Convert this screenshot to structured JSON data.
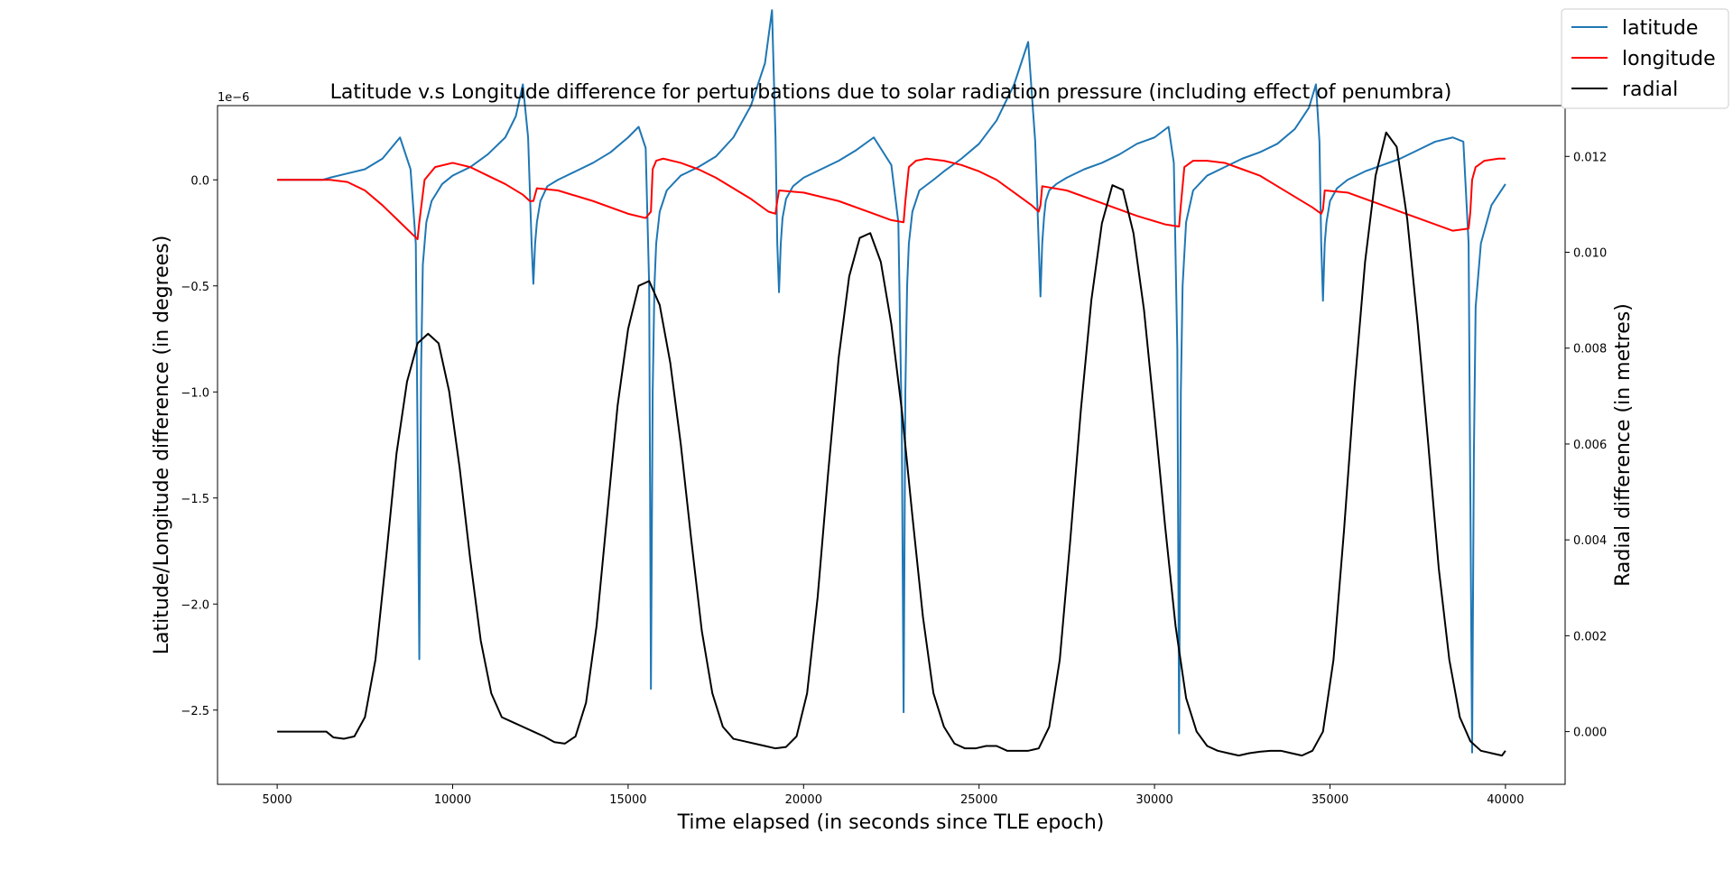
{
  "chart_data": {
    "type": "line",
    "title": "Latitude v.s Longitude difference for perturbations due to solar radiation pressure (including effect of penumbra)",
    "xlabel": "Time elapsed (in seconds since TLE epoch)",
    "ylabel_left": "Latitude/Longitude difference (in degrees)",
    "ylabel_right": "Radial difference (in metres)",
    "left_axis_multiplier": "1e−6",
    "xlim": [
      3300,
      41700
    ],
    "ylim_left": [
      -2.85,
      0.35
    ],
    "ylim_right": [
      -0.0011,
      0.01306
    ],
    "x_ticks": [
      5000,
      10000,
      15000,
      20000,
      25000,
      30000,
      35000,
      40000
    ],
    "x_tick_labels": [
      "5000",
      "10000",
      "15000",
      "20000",
      "25000",
      "30000",
      "35000",
      "40000"
    ],
    "y_left_ticks": [
      0.0,
      -0.5,
      -1.0,
      -1.5,
      -2.0,
      -2.5
    ],
    "y_left_tick_labels": [
      "0.0",
      "−0.5",
      "−1.0",
      "−1.5",
      "−2.0",
      "−2.5"
    ],
    "y_right_ticks": [
      0.0,
      0.002,
      0.004,
      0.006,
      0.008,
      0.01,
      0.012
    ],
    "y_right_tick_labels": [
      "0.000",
      "0.002",
      "0.004",
      "0.006",
      "0.008",
      "0.010",
      "0.012"
    ],
    "grid": false,
    "legend_position": "top-right",
    "series": [
      {
        "name": "latitude",
        "axis": "left",
        "color": "#1f77b4",
        "x": [
          5000,
          6300,
          6500,
          7000,
          7500,
          8000,
          8500,
          8800,
          8950,
          9000,
          9050,
          9100,
          9150,
          9250,
          9400,
          9700,
          10000,
          10500,
          11000,
          11500,
          11800,
          12000,
          12150,
          12250,
          12300,
          12350,
          12400,
          12500,
          12700,
          13000,
          13500,
          14000,
          14500,
          15000,
          15300,
          15500,
          15600,
          15650,
          15700,
          15750,
          15800,
          15900,
          16100,
          16500,
          17000,
          17500,
          18000,
          18500,
          18900,
          19100,
          19200,
          19250,
          19300,
          19350,
          19400,
          19500,
          19700,
          20000,
          20500,
          21000,
          21500,
          22000,
          22500,
          22700,
          22800,
          22850,
          22900,
          22950,
          23000,
          23100,
          23300,
          23700,
          24000,
          24500,
          25000,
          25500,
          26000,
          26400,
          26600,
          26700,
          26750,
          26800,
          26850,
          26900,
          27000,
          27200,
          27500,
          28000,
          28500,
          29000,
          29500,
          30000,
          30400,
          30550,
          30650,
          30700,
          30750,
          30800,
          30900,
          31100,
          31500,
          32000,
          32500,
          33000,
          33500,
          34000,
          34400,
          34600,
          34700,
          34750,
          34800,
          34850,
          34900,
          35000,
          35200,
          35500,
          36000,
          36500,
          37000,
          37500,
          38000,
          38500,
          38800,
          38950,
          39000,
          39050,
          39100,
          39150,
          39300,
          39600,
          40000
        ],
        "y": [
          0.0,
          0.0,
          0.01,
          0.03,
          0.05,
          0.1,
          0.2,
          0.05,
          -0.3,
          -1.2,
          -2.26,
          -0.9,
          -0.4,
          -0.2,
          -0.1,
          -0.02,
          0.02,
          0.06,
          0.12,
          0.2,
          0.3,
          0.45,
          0.2,
          -0.3,
          -0.49,
          -0.3,
          -0.2,
          -0.1,
          -0.03,
          0.0,
          0.04,
          0.08,
          0.13,
          0.2,
          0.25,
          0.15,
          -0.5,
          -2.4,
          -1.0,
          -0.5,
          -0.3,
          -0.15,
          -0.05,
          0.02,
          0.06,
          0.11,
          0.2,
          0.35,
          0.55,
          0.8,
          0.2,
          -0.3,
          -0.53,
          -0.3,
          -0.18,
          -0.09,
          -0.03,
          0.01,
          0.05,
          0.09,
          0.14,
          0.2,
          0.07,
          -0.2,
          -1.2,
          -2.51,
          -1.0,
          -0.5,
          -0.3,
          -0.15,
          -0.05,
          0.0,
          0.04,
          0.1,
          0.17,
          0.28,
          0.45,
          0.65,
          0.18,
          -0.3,
          -0.55,
          -0.3,
          -0.18,
          -0.1,
          -0.05,
          -0.02,
          0.01,
          0.05,
          0.08,
          0.12,
          0.17,
          0.2,
          0.25,
          0.08,
          -0.8,
          -2.61,
          -1.0,
          -0.5,
          -0.2,
          -0.05,
          0.02,
          0.06,
          0.1,
          0.13,
          0.17,
          0.24,
          0.34,
          0.45,
          0.18,
          -0.3,
          -0.57,
          -0.3,
          -0.2,
          -0.1,
          -0.04,
          0.0,
          0.04,
          0.07,
          0.1,
          0.14,
          0.18,
          0.2,
          0.18,
          -0.3,
          -1.5,
          -2.7,
          -1.3,
          -0.6,
          -0.3,
          -0.12,
          -0.02
        ]
      },
      {
        "name": "longitude",
        "axis": "left",
        "color": "#ff0000",
        "x": [
          5000,
          6000,
          6500,
          7000,
          7500,
          8000,
          8500,
          9000,
          9050,
          9200,
          9500,
          10000,
          10500,
          11000,
          11500,
          12000,
          12200,
          12300,
          12400,
          13000,
          14000,
          15000,
          15500,
          15650,
          15700,
          15800,
          16000,
          16500,
          17000,
          17500,
          18000,
          18500,
          19000,
          19200,
          19250,
          19300,
          20000,
          21000,
          22000,
          22500,
          22850,
          22900,
          23000,
          23200,
          23500,
          24000,
          24500,
          25000,
          25500,
          26000,
          26500,
          26700,
          26750,
          26800,
          27500,
          28500,
          29500,
          30300,
          30700,
          30750,
          30850,
          31100,
          31500,
          32000,
          32500,
          33000,
          33500,
          34000,
          34500,
          34750,
          34800,
          34850,
          35500,
          36500,
          37500,
          38500,
          38950,
          39000,
          39050,
          39150,
          39400,
          39800,
          40000
        ],
        "y": [
          0.0,
          0.0,
          0.0,
          -0.01,
          -0.05,
          -0.12,
          -0.2,
          -0.28,
          -0.2,
          0.0,
          0.06,
          0.08,
          0.06,
          0.02,
          -0.02,
          -0.07,
          -0.1,
          -0.1,
          -0.04,
          -0.05,
          -0.1,
          -0.16,
          -0.18,
          -0.15,
          0.05,
          0.09,
          0.1,
          0.08,
          0.05,
          0.01,
          -0.04,
          -0.09,
          -0.15,
          -0.16,
          -0.1,
          -0.05,
          -0.06,
          -0.1,
          -0.16,
          -0.19,
          -0.2,
          -0.1,
          0.06,
          0.09,
          0.1,
          0.09,
          0.07,
          0.04,
          0.0,
          -0.06,
          -0.12,
          -0.15,
          -0.12,
          -0.03,
          -0.05,
          -0.11,
          -0.17,
          -0.21,
          -0.22,
          -0.12,
          0.06,
          0.09,
          0.09,
          0.08,
          0.05,
          0.02,
          -0.03,
          -0.08,
          -0.13,
          -0.16,
          -0.14,
          -0.05,
          -0.06,
          -0.12,
          -0.18,
          -0.24,
          -0.23,
          -0.15,
          0.0,
          0.06,
          0.09,
          0.1,
          0.1
        ]
      },
      {
        "name": "radial",
        "axis": "right",
        "color": "#000000",
        "x": [
          5000,
          6400,
          6600,
          6900,
          7200,
          7500,
          7800,
          8100,
          8400,
          8700,
          9000,
          9300,
          9600,
          9900,
          10200,
          10500,
          10800,
          11100,
          11400,
          11700,
          12000,
          12300,
          12600,
          12900,
          13200,
          13500,
          13800,
          14100,
          14400,
          14700,
          15000,
          15300,
          15600,
          15900,
          16200,
          16500,
          16800,
          17100,
          17400,
          17700,
          18000,
          18300,
          18600,
          18900,
          19200,
          19500,
          19800,
          20100,
          20400,
          20700,
          21000,
          21300,
          21600,
          21900,
          22200,
          22500,
          22800,
          23100,
          23400,
          23700,
          24000,
          24300,
          24600,
          24900,
          25200,
          25500,
          25800,
          26100,
          26400,
          26700,
          27000,
          27300,
          27600,
          27900,
          28200,
          28500,
          28800,
          29100,
          29400,
          29700,
          30000,
          30300,
          30600,
          30900,
          31200,
          31500,
          31800,
          32100,
          32400,
          32700,
          33000,
          33300,
          33600,
          33900,
          34200,
          34500,
          34800,
          35100,
          35400,
          35700,
          36000,
          36300,
          36600,
          36900,
          37200,
          37500,
          37800,
          38100,
          38400,
          38700,
          39000,
          39300,
          39600,
          39900,
          40000
        ],
        "y": [
          0.0,
          0.0,
          -0.00012,
          -0.00015,
          -0.0001,
          0.0003,
          0.0015,
          0.0036,
          0.0058,
          0.0073,
          0.0081,
          0.0083,
          0.0081,
          0.0071,
          0.0055,
          0.0036,
          0.0019,
          0.0008,
          0.0003,
          0.0002,
          0.0001,
          0.0,
          -0.0001,
          -0.00022,
          -0.00025,
          -0.0001,
          0.0006,
          0.0022,
          0.0045,
          0.0068,
          0.0084,
          0.0093,
          0.0094,
          0.0089,
          0.0077,
          0.006,
          0.004,
          0.0021,
          0.0008,
          0.0001,
          -0.00015,
          -0.0002,
          -0.00025,
          -0.0003,
          -0.00035,
          -0.00032,
          -0.0001,
          0.0008,
          0.0028,
          0.0054,
          0.0078,
          0.0095,
          0.0103,
          0.0104,
          0.0098,
          0.0085,
          0.0067,
          0.0045,
          0.0024,
          0.0008,
          0.0001,
          -0.00025,
          -0.00035,
          -0.00035,
          -0.0003,
          -0.0003,
          -0.0004,
          -0.0004,
          -0.0004,
          -0.00035,
          0.0001,
          0.0015,
          0.004,
          0.0067,
          0.009,
          0.0106,
          0.0114,
          0.0113,
          0.0104,
          0.0088,
          0.0066,
          0.0043,
          0.0022,
          0.0007,
          0.0,
          -0.0003,
          -0.0004,
          -0.00045,
          -0.0005,
          -0.00045,
          -0.00042,
          -0.0004,
          -0.0004,
          -0.00045,
          -0.0005,
          -0.0004,
          0.0,
          0.0015,
          0.0042,
          0.0072,
          0.0098,
          0.0116,
          0.0125,
          0.0122,
          0.0107,
          0.0085,
          0.006,
          0.0034,
          0.0015,
          0.0003,
          -0.0002,
          -0.0004,
          -0.00045,
          -0.0005,
          -0.0004
        ]
      }
    ]
  }
}
